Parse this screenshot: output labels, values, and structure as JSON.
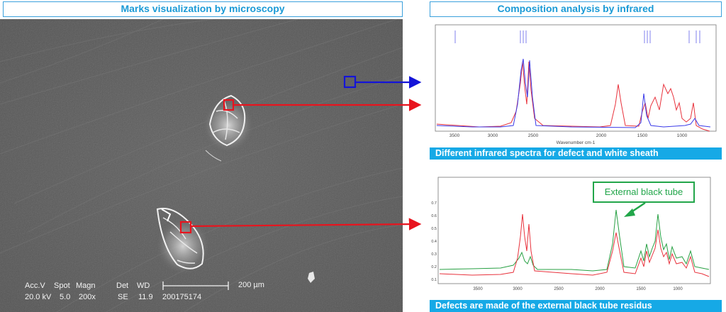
{
  "headers": {
    "left": "Marks visualization by microscopy",
    "right": "Composition analysis by infrared"
  },
  "micrograph": {
    "labels_row1": [
      "Acc.V",
      "Spot",
      "Magn",
      "Det",
      "WD"
    ],
    "labels_row2": [
      "20.0 kV",
      "5.0",
      "200x",
      "SE",
      "11.9",
      "200175174"
    ],
    "scale_bar": "200 µm"
  },
  "spectrum_top": {
    "xlabel": "Wavenumber cm-1",
    "x_ticks": [
      "3500",
      "3000",
      "2500",
      "2000",
      "1500",
      "1000"
    ],
    "caption": "Different infrared spectra for defect and white sheath",
    "series_colors": {
      "defect": "#e8323c",
      "white_sheath": "#3a3ae8"
    }
  },
  "spectrum_bottom": {
    "x_ticks": [
      "3500",
      "3000",
      "2500",
      "2000",
      "1500",
      "1000"
    ],
    "y_ticks": [
      "0.7",
      "0.6",
      "0.5",
      "0.4",
      "0.3",
      "0.2",
      "0.1"
    ],
    "caption": "Defects are made of the external black tube residus",
    "callout": "External black tube",
    "series_colors": {
      "defect": "#e8323c",
      "external_black_tube": "#27a043"
    }
  },
  "colors": {
    "header_text": "#1a9ad6",
    "caption_bg": "#16a9e6",
    "arrow_red": "#e8141e",
    "arrow_blue": "#1414d8",
    "callout_green": "#22a64a"
  }
}
